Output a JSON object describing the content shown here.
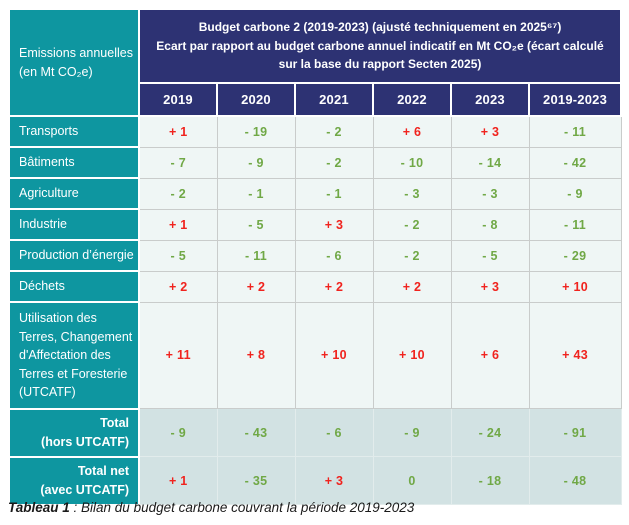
{
  "colors": {
    "teal": "#0e96a0",
    "navy": "#2d3273",
    "positive_red": "#f0231e",
    "negative_green": "#70a846",
    "cell_bg": "#eff6f5",
    "totals_bg": "#d2e2e3",
    "grid_border": "#c9cccb",
    "caption_text": "#1a1a1a"
  },
  "table": {
    "corner_label_line1": "Emissions annuelles",
    "corner_label_line2": "(en Mt CO₂e)",
    "title_line1": "Budget carbone 2 (2019-2023) (ajusté techniquement en 2025⁶⁷)",
    "title_line2": "Ecart par rapport au budget carbone annuel indicatif en Mt CO₂e (écart calculé sur la base du rapport Secten 2025)",
    "year_headers": [
      "2019",
      "2020",
      "2021",
      "2022",
      "2023",
      "2019-2023"
    ],
    "rows": [
      {
        "label": "Transports",
        "values": [
          "+ 1",
          "- 19",
          "- 2",
          "+ 6",
          "+ 3",
          "- 11"
        ]
      },
      {
        "label": "Bâtiments",
        "values": [
          "- 7",
          "- 9",
          "- 2",
          "- 10",
          "- 14",
          "- 42"
        ]
      },
      {
        "label": "Agriculture",
        "values": [
          "- 2",
          "- 1",
          "- 1",
          "- 3",
          "- 3",
          "- 9"
        ]
      },
      {
        "label": "Industrie",
        "values": [
          "+ 1",
          "- 5",
          "+ 3",
          "- 2",
          "- 8",
          "- 11"
        ]
      },
      {
        "label": "Production d’énergie",
        "values": [
          "- 5",
          "- 11",
          "- 6",
          "- 2",
          "- 5",
          "- 29"
        ]
      },
      {
        "label": "Déchets",
        "values": [
          "+ 2",
          "+ 2",
          "+ 2",
          "+ 2",
          "+ 3",
          "+ 10"
        ]
      },
      {
        "label": "Utilisation des Terres, Changement d'Affectation des Terres et Foresterie (UTCATF)",
        "values": [
          "+ 11",
          "+ 8",
          "+ 10",
          "+ 10",
          "+ 6",
          "+ 43"
        ]
      }
    ],
    "total_rows": [
      {
        "label_line1": "Total",
        "label_line2": "(hors UTCATF)",
        "values": [
          "- 9",
          "- 43",
          "- 6",
          "- 9",
          "- 24",
          "- 91"
        ]
      },
      {
        "label_line1": "Total net",
        "label_line2": "(avec UTCATF)",
        "values": [
          "+ 1",
          "- 35",
          "+ 3",
          "0",
          "- 18",
          "- 48"
        ]
      }
    ]
  },
  "caption": {
    "label": "Tableau 1",
    "text": " : Bilan du budget carbone couvrant la période 2019-2023"
  }
}
